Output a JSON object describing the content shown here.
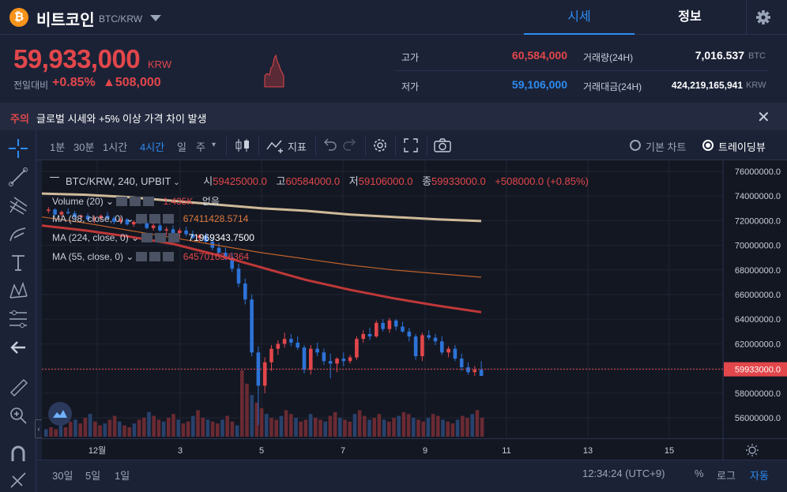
{
  "header": {
    "coin_icon": "bitcoin-icon",
    "coin_name": "비트코인",
    "pair": "BTC/KRW",
    "tabs": [
      {
        "label": "시세"
      },
      {
        "label": "정보"
      }
    ]
  },
  "ticker": {
    "price": "59,933,000",
    "unit": "KRW",
    "compare_label": "전일대비",
    "change_rate": "+0.85%",
    "change_amount": "▲508,000",
    "high_label": "고가",
    "high_value": "60,584,000",
    "low_label": "저가",
    "low_value": "59,106,000",
    "volume_label": "거래량(24H)",
    "volume_value": "7,016.537",
    "volume_unit": "BTC",
    "amount_label": "거래대금(24H)",
    "amount_value": "424,219,165,941",
    "amount_unit": "KRW"
  },
  "notice": {
    "tag": "주의",
    "text": "글로벌 시세와 +5% 이상 가격 차이 발생"
  },
  "toolbar": {
    "timeframes": [
      "1분",
      "30분",
      "1시간",
      "4시간",
      "일",
      "주"
    ],
    "indicator_label": "지표",
    "basic_chart_label": "기본 차트",
    "tradingview_label": "트레이딩뷰"
  },
  "legend": {
    "symbol": "BTC/KRW, 240, UPBIT",
    "open_label": "시",
    "open": "59425000.0",
    "high_label": "고",
    "high": "60584000.0",
    "low_label": "저",
    "low": "59106000.0",
    "close_label": "종",
    "close": "59933000.0",
    "change": "+508000.0 (+0.85%)",
    "volume": {
      "name": "Volume (20)",
      "value": "1.435K",
      "extra": "없음"
    },
    "ma1": {
      "name": "MA (98, close, 0)",
      "value": "67411428.5714"
    },
    "ma2": {
      "name": "MA (224, close, 0)",
      "value": "71969343.7500"
    },
    "ma3": {
      "name": "MA (55, close, 0)",
      "value": "64570163.6364"
    }
  },
  "colors": {
    "up": "#e2474b",
    "down": "#2d73d8",
    "accent": "#2d8cf0"
  },
  "chart_data": {
    "type": "candlestick",
    "y_ticks": [
      "76000000.0",
      "74000000.0",
      "72000000.0",
      "70000000.0",
      "68000000.0",
      "66000000.0",
      "64000000.0",
      "62000000.0",
      "60000000.0",
      "58000000.0",
      "56000000.0"
    ],
    "ylim": [
      54800000,
      77000000
    ],
    "price_label": "59933000.0",
    "x_ticks": [
      "12월",
      "3",
      "5",
      "7",
      "9",
      "11",
      "13",
      "15"
    ],
    "ma_series": [
      {
        "name": "MA (224, close, 0)",
        "color": "#d9c3a0",
        "values": [
          74200000,
          74100000,
          73900000,
          73600000,
          73300000,
          73000000,
          72800000,
          72500000,
          72300000,
          72100000,
          71970000
        ]
      },
      {
        "name": "MA (98, close, 0)",
        "color": "#c8662a",
        "values": [
          72300000,
          71800000,
          71200000,
          70600000,
          70000000,
          69400000,
          68900000,
          68400000,
          68000000,
          67700000,
          67411000
        ]
      },
      {
        "name": "MA (55, close, 0)",
        "color": "#c83a3a",
        "values": [
          71600000,
          71200000,
          70700000,
          70100000,
          69200000,
          68200000,
          67200000,
          66400000,
          65700000,
          65100000,
          64570000
        ]
      }
    ]
  },
  "bottom": {
    "ranges": [
      "30일",
      "5일",
      "1일"
    ],
    "time": "12:34:24 (UTC+9)",
    "percent": "%",
    "log": "로그",
    "auto": "자동"
  }
}
